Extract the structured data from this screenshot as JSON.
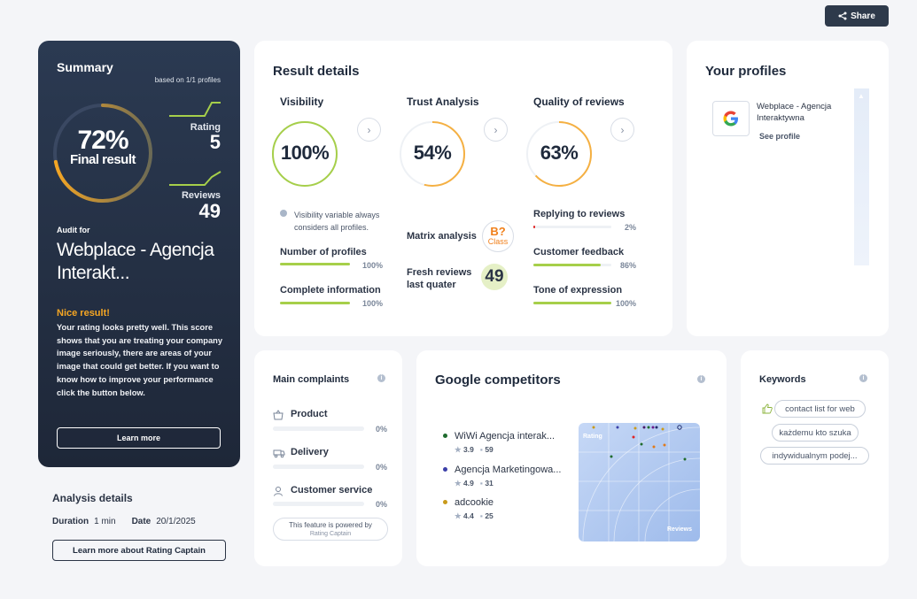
{
  "share": {
    "label": "Share",
    "icon": "share-icon"
  },
  "summary": {
    "title": "Summary",
    "based_on": "based on 1/1 profiles",
    "score_pct": "72%",
    "score_value": 0.72,
    "final_label": "Final result",
    "rating_label": "Rating",
    "rating_value": "5",
    "reviews_label": "Reviews",
    "reviews_value": "49",
    "audit_for": "Audit for",
    "company": "Webplace - Agencja Interakt...",
    "nice": "Nice result!",
    "description": "Your rating looks pretty well. This score shows that you are treating your company image seriously, there are areas of your image that could get better. If you want to know how to improve your performance click the button below.",
    "learn_more": "Learn more"
  },
  "analysis": {
    "title": "Analysis details",
    "duration_label": "Duration",
    "duration_value": "1 min",
    "date_label": "Date",
    "date_value": "20/1/2025",
    "button": "Learn more about Rating Captain"
  },
  "result": {
    "title": "Result details",
    "visibility": {
      "title": "Visibility",
      "value": "100%",
      "fraction": 1.0,
      "note": "Visibility variable always considers all profiles.",
      "number_of_profiles_label": "Number of profiles",
      "number_of_profiles_value": "100%",
      "complete_info_label": "Complete information",
      "complete_info_value": "100%"
    },
    "trust": {
      "title": "Trust Analysis",
      "value": "54%",
      "fraction": 0.54,
      "matrix_label": "Matrix analysis",
      "matrix_grade": "B?",
      "matrix_class": "Class",
      "fresh_label": "Fresh reviews last quater",
      "fresh_value": "49"
    },
    "quality": {
      "title": "Quality of reviews",
      "value": "63%",
      "fraction": 0.63,
      "replying_label": "Replying to reviews",
      "replying_value": "2%",
      "feedback_label": "Customer feedback",
      "feedback_value": "86%",
      "tone_label": "Tone of expression",
      "tone_value": "100%"
    }
  },
  "profiles": {
    "title": "Your profiles",
    "items": [
      {
        "name": "Webplace - Agencja Interaktywna",
        "link": "See profile",
        "icon": "google-icon"
      }
    ]
  },
  "complaints": {
    "title": "Main complaints",
    "items": [
      {
        "label": "Product",
        "value": "0%",
        "icon": "basket-icon"
      },
      {
        "label": "Delivery",
        "value": "0%",
        "icon": "truck-icon"
      },
      {
        "label": "Customer service",
        "value": "0%",
        "icon": "person-icon"
      }
    ],
    "powered": "This feature is powered by",
    "powered_brand": "Rating Captain"
  },
  "competitors": {
    "title": "Google competitors",
    "items": [
      {
        "name": "WiWi Agencja interak...",
        "rating": "3.9",
        "reviews": "59",
        "color": "#1f6b2e"
      },
      {
        "name": "Agencja Marketingowa...",
        "rating": "4.9",
        "reviews": "31",
        "color": "#3b3fa8"
      },
      {
        "name": "adcookie",
        "rating": "4.4",
        "reviews": "25",
        "color": "#c99a1a"
      }
    ],
    "plot_y_label": "Rating",
    "plot_x_label": "Reviews"
  },
  "keywords": {
    "title": "Keywords",
    "items": [
      "contact list for web",
      "każdemu kto szuka",
      "indywidualnym podej..."
    ]
  }
}
